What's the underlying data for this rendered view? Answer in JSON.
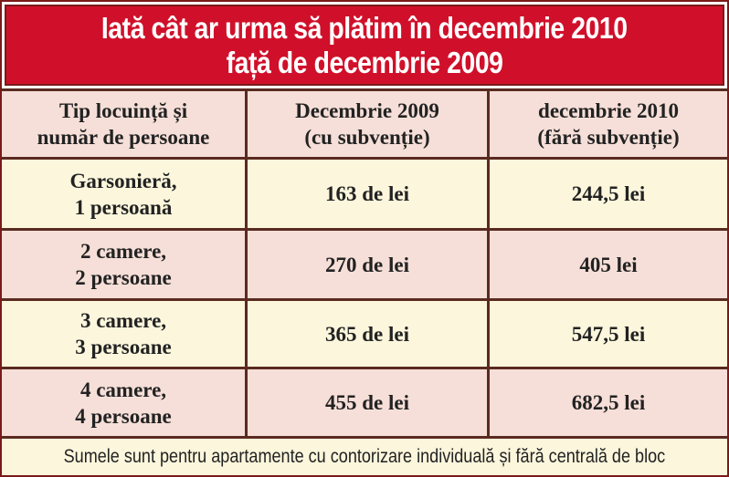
{
  "title": [
    "Iată cât ar urma să plătim în decembrie 2010",
    "față de decembrie 2009"
  ],
  "table": {
    "header": [
      [
        "Tip locuință și",
        "număr de persoane"
      ],
      [
        "Decembrie 2009",
        "(cu subvenție)"
      ],
      [
        "decembrie 2010",
        "(fără subvenție)"
      ]
    ],
    "rows": [
      [
        [
          "Garsonieră,",
          "1 persoană"
        ],
        [
          "163 de lei"
        ],
        [
          "244,5 lei"
        ]
      ],
      [
        [
          "2 camere,",
          "2 persoane"
        ],
        [
          "270 de lei"
        ],
        [
          "405 lei"
        ]
      ],
      [
        [
          "3 camere,",
          "3 persoane"
        ],
        [
          "365 de lei"
        ],
        [
          "547,5 lei"
        ]
      ],
      [
        [
          "4 camere,",
          "4 persoane"
        ],
        [
          "455 de lei"
        ],
        [
          "682,5 lei"
        ]
      ]
    ]
  },
  "footer": "Sumele sunt pentru apartamente cu contorizare individuală și fără centrală de bloc"
}
